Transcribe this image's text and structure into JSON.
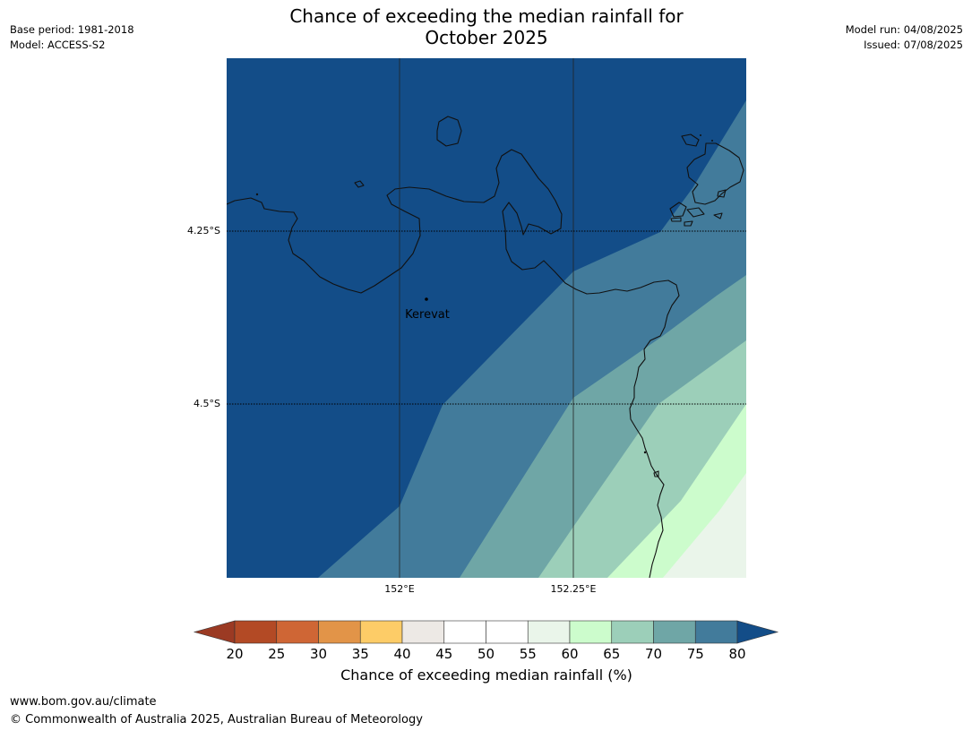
{
  "header": {
    "base_period": "Base period: 1981-2018",
    "model": "Model: ACCESS-S2",
    "model_run": "Model run: 04/08/2025",
    "issued": "Issued: 07/08/2025",
    "title_line1": "Chance of exceeding the median rainfall for",
    "title_line2": "October 2025"
  },
  "map": {
    "background_color": "#134d88",
    "lat_labels": [
      "4.25°S",
      "4.5°S"
    ],
    "lon_labels": [
      "152°E",
      "152.25°E"
    ],
    "place": {
      "name": "Kerevat"
    },
    "probability_bands": [
      {
        "range": "75-80",
        "color": "#427b9b"
      },
      {
        "range": "70-75",
        "color": "#6fa6a6"
      },
      {
        "range": "65-70",
        "color": "#9ccfb9"
      },
      {
        "range": "60-65",
        "color": "#ccfccc"
      },
      {
        "range": "55-60",
        "color": "#eaf5ea"
      }
    ]
  },
  "colorbar": {
    "label": "Chance of exceeding median rainfall (%)",
    "ticks": [
      "20",
      "25",
      "30",
      "35",
      "40",
      "45",
      "50",
      "55",
      "60",
      "65",
      "70",
      "75",
      "80"
    ],
    "under_color": "#9b3a23",
    "over_color": "#134d88",
    "segment_colors": [
      "#b34a25",
      "#cf6635",
      "#e29448",
      "#fdcc67",
      "#ede9e5",
      "#ffffff",
      "#ffffff",
      "#eaf5ea",
      "#ccfccc",
      "#9ccfb9",
      "#6fa6a6",
      "#427b9b"
    ]
  },
  "footer": {
    "url": "www.bom.gov.au/climate",
    "copyright": "© Commonwealth of Australia 2025, Australian Bureau of Meteorology"
  }
}
